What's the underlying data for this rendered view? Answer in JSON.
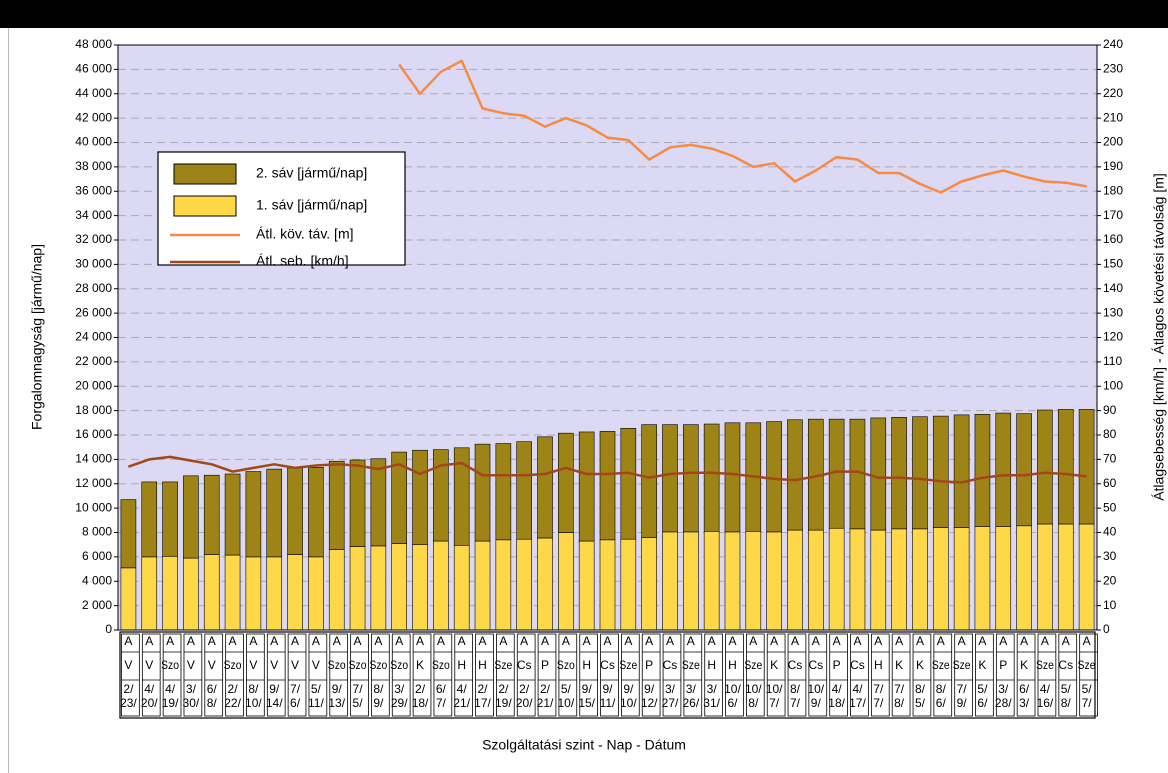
{
  "chart_data": {
    "type": "bar",
    "stacked": true,
    "x_label": "Szolgáltatási szint - Nap - Dátum",
    "y_label": "Forgalomnagyság [jármű/nap]",
    "y2_label": "Átlagsebesség [km/h] - Átlagos követési távolság [m]",
    "levels": [
      "A",
      "A",
      "A",
      "A",
      "A",
      "A",
      "A",
      "A",
      "A",
      "A",
      "A",
      "A",
      "A",
      "A",
      "A",
      "A",
      "A",
      "A",
      "A",
      "A",
      "A",
      "A",
      "A",
      "A",
      "A",
      "A",
      "A",
      "A",
      "A",
      "A",
      "A",
      "A",
      "A",
      "A",
      "A",
      "A",
      "A",
      "A",
      "A",
      "A",
      "A",
      "A",
      "A",
      "A",
      "A",
      "A",
      "A"
    ],
    "days": [
      "V",
      "V",
      "Szo",
      "V",
      "V",
      "Szo",
      "V",
      "V",
      "V",
      "V",
      "Szo",
      "Szo",
      "Szo",
      "Szo",
      "K",
      "Szo",
      "H",
      "H",
      "Sze",
      "Cs",
      "P",
      "Szo",
      "H",
      "Cs",
      "Sze",
      "P",
      "Cs",
      "Sze",
      "H",
      "H",
      "Sze",
      "K",
      "Cs",
      "Cs",
      "P",
      "Cs",
      "H",
      "K",
      "K",
      "Sze",
      "Sze",
      "K",
      "P",
      "K",
      "Sze",
      "Cs",
      "Sze"
    ],
    "categories": [
      "2/ 23/",
      "4/ 20/",
      "4/ 19/",
      "3/ 30/",
      "6/ 8/",
      "2/ 22/",
      "8/ 10/",
      "9/ 14/",
      "7/ 6/",
      "5/ 11/",
      "9/ 13/",
      "7/ 5/",
      "8/ 9/",
      "3/ 29/",
      "2/ 18/",
      "6/ 7/",
      "4/ 21/",
      "2/ 17/",
      "2/ 19/",
      "2/ 20/",
      "2/ 21/",
      "5/ 10/",
      "9/ 15/",
      "9/ 11/",
      "9/ 10/",
      "9/ 12/",
      "3/ 27/",
      "3/ 26/",
      "3/ 31/",
      "10/ 6/",
      "10/ 8/",
      "10/ 7/",
      "8/ 7/",
      "10/ 9/",
      "4/ 18/",
      "4/ 17/",
      "7/ 7/",
      "7/ 8/",
      "8/ 5/",
      "8/ 6/",
      "7/ 9/",
      "5/ 6/",
      "3/ 28/",
      "6/ 3/",
      "4/ 16/",
      "5/ 8/",
      "5/ 7/"
    ],
    "series": [
      {
        "name": "1. sáv [jármű/nap]",
        "type": "bar",
        "color": "#ffd84a",
        "values": [
          5100,
          6000,
          6050,
          5900,
          6200,
          6150,
          6000,
          6000,
          6200,
          6000,
          6600,
          6850,
          6900,
          7100,
          7000,
          7300,
          6950,
          7300,
          7400,
          7450,
          7550,
          8000,
          7300,
          7400,
          7450,
          7600,
          8050,
          8050,
          8100,
          8050,
          8100,
          8050,
          8200,
          8200,
          8350,
          8300,
          8200,
          8300,
          8300,
          8400,
          8400,
          8500,
          8500,
          8550,
          8700,
          8700,
          8700
        ]
      },
      {
        "name": "2. sáv [jármű/nap]",
        "type": "bar",
        "color": "#9e8417",
        "values": [
          5600,
          6150,
          6100,
          6750,
          6500,
          6650,
          7000,
          7200,
          7100,
          7350,
          7250,
          7100,
          7150,
          7500,
          7750,
          7500,
          8000,
          7950,
          7900,
          8000,
          8300,
          8150,
          8950,
          8900,
          9100,
          9250,
          8800,
          8800,
          8800,
          8950,
          8900,
          9050,
          9050,
          9100,
          8950,
          9000,
          9200,
          9150,
          9200,
          9150,
          9250,
          9200,
          9300,
          9200,
          9350,
          9400,
          9400
        ]
      },
      {
        "name": "Átl. köv. táv. [m]",
        "type": "line",
        "axis": "y2",
        "color": "#f58b45",
        "values": [
          null,
          null,
          null,
          null,
          null,
          null,
          null,
          null,
          null,
          null,
          null,
          null,
          null,
          232,
          220,
          229,
          233.5,
          214,
          212,
          211,
          206.5,
          210,
          207,
          202,
          201,
          193,
          198,
          199,
          197.5,
          194.5,
          190,
          191.5,
          184,
          188.5,
          194,
          193,
          187.5,
          187.5,
          183,
          179.5,
          184,
          186.5,
          188.5,
          186,
          184,
          183.5,
          182
        ]
      },
      {
        "name": "Átl. seb. [km/h]",
        "type": "line",
        "axis": "y2",
        "color": "#a0481a",
        "values": [
          67,
          70,
          71,
          69.5,
          68,
          65,
          66.5,
          68,
          66.5,
          67.5,
          68,
          67.5,
          66,
          68,
          64,
          67.5,
          68.5,
          63.5,
          63.5,
          63.5,
          64,
          66.5,
          64,
          64,
          64.5,
          62.5,
          64,
          64.5,
          64.5,
          64,
          63,
          62,
          61.5,
          63,
          65,
          65,
          62.5,
          62.5,
          62,
          61,
          60.5,
          62.5,
          63.5,
          63.5,
          64.5,
          64,
          63
        ]
      }
    ],
    "legend": "upper left",
    "grid": true,
    "ylim": [
      0,
      48000
    ],
    "yticks": [
      0,
      {
        "value": 2000,
        "label": "2 000"
      },
      {
        "value": 4000,
        "label": "4 000"
      },
      {
        "value": 6000,
        "label": "6 000"
      },
      {
        "value": 8000,
        "label": "8 000"
      },
      {
        "value": 10000,
        "label": "10 000"
      },
      {
        "value": 12000,
        "label": "12 000"
      },
      {
        "value": 14000,
        "label": "14 000"
      },
      {
        "value": 16000,
        "label": "16 000"
      },
      {
        "value": 18000,
        "label": "18 000"
      },
      {
        "value": 20000,
        "label": "20 000"
      },
      {
        "value": 22000,
        "label": "22 000"
      },
      {
        "value": 24000,
        "label": "24 000"
      },
      {
        "value": 26000,
        "label": "26 000"
      },
      {
        "value": 28000,
        "label": "28 000"
      },
      {
        "value": 30000,
        "label": "30 000"
      },
      {
        "value": 32000,
        "label": "32 000"
      },
      {
        "value": 34000,
        "label": "34 000"
      },
      {
        "value": 36000,
        "label": "36 000"
      },
      {
        "value": 38000,
        "label": "38 000"
      },
      {
        "value": 40000,
        "label": "40 000"
      },
      {
        "value": 42000,
        "label": "42 000"
      },
      {
        "value": 44000,
        "label": "44 000"
      },
      {
        "value": 46000,
        "label": "46 000"
      },
      {
        "value": 48000,
        "label": "48 000"
      }
    ],
    "y2lim": [
      0,
      240
    ],
    "y2ticks": [
      0,
      10,
      20,
      30,
      40,
      50,
      60,
      70,
      80,
      90,
      100,
      110,
      120,
      130,
      140,
      150,
      160,
      170,
      180,
      190,
      200,
      210,
      220,
      230,
      240
    ]
  }
}
